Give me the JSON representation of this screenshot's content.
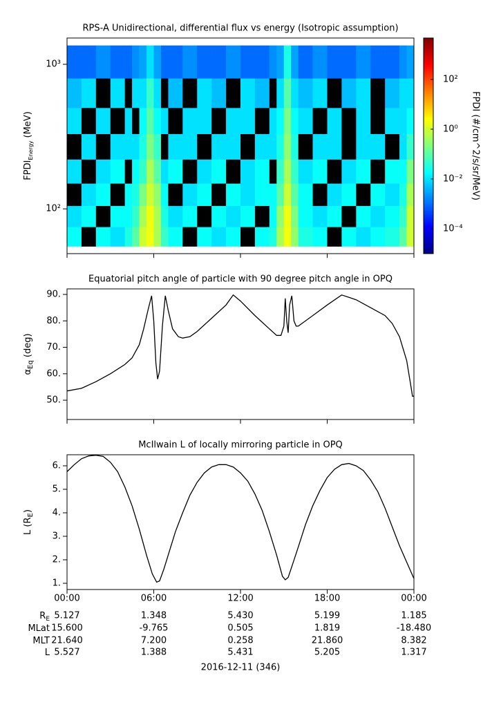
{
  "chart_data": [
    {
      "type": "spectrogram",
      "title": "RPS-A Unidirectional, differential flux vs energy (Isotropic assumption)",
      "ylabel": [
        "FPDI",
        "Energy",
        " (MeV)"
      ],
      "clabel": "FPDI (#/cm^2/s/sr/MeV)",
      "log_y": true,
      "log_c": true,
      "colormap": "jet",
      "zero_color": "#000000",
      "xlim": [
        0,
        24
      ],
      "xticks": [
        0,
        6,
        12,
        18,
        24
      ],
      "ylim": [
        49,
        1520
      ],
      "yticks": [
        {
          "value": 1000,
          "label": "10³"
        },
        {
          "value": 100,
          "label": "10²"
        }
      ],
      "clim": [
        1e-05,
        4600
      ],
      "cticks": [
        {
          "value": 100,
          "label": "10²"
        },
        {
          "value": 1,
          "label": "10⁰"
        },
        {
          "value": 0.01,
          "label": "10⁻²"
        },
        {
          "value": 0.0001,
          "label": "10⁻⁴"
        }
      ],
      "time_bins": [
        0,
        1,
        2,
        3,
        4,
        4.5,
        5,
        5.5,
        6,
        6.5,
        7,
        8,
        9,
        10,
        11,
        12,
        13,
        14,
        14.5,
        15,
        15.5,
        16,
        17,
        18,
        19,
        20,
        21,
        22,
        23,
        23.5,
        24
      ],
      "energy_bins": [
        55,
        75,
        105,
        150,
        220,
        330,
        500,
        800,
        1350
      ],
      "z": [
        [
          0.02,
          0,
          0.02,
          0.01,
          0.03,
          0.1,
          1,
          2,
          0.5,
          0.05,
          0.02,
          0,
          0.02,
          0.01,
          0.02,
          0,
          0.02,
          0.03,
          0.5,
          2,
          0.3,
          0.03,
          0.02,
          0,
          0.02,
          0.01,
          0.02,
          0.03,
          0.1,
          1
        ],
        [
          0.01,
          0.02,
          0,
          0.02,
          0.02,
          0.05,
          0.5,
          2,
          0.5,
          0.03,
          0.01,
          0.02,
          0,
          0.02,
          0.01,
          0.02,
          0,
          0.02,
          0.3,
          2,
          0.2,
          0.02,
          0.01,
          0.02,
          0,
          0.02,
          0.01,
          0.02,
          0.05,
          1
        ],
        [
          0,
          0.01,
          0.02,
          0,
          0.02,
          0.03,
          0.2,
          1,
          0.3,
          0.02,
          0,
          0.01,
          0.02,
          0,
          0.02,
          0.01,
          0.02,
          0.02,
          0.1,
          1,
          0.1,
          0.02,
          0,
          0.01,
          0.02,
          0,
          0.02,
          0.01,
          0.03,
          0.5
        ],
        [
          0.01,
          0,
          0.01,
          0.02,
          0,
          0.02,
          0.05,
          0.5,
          0.1,
          0.01,
          0.02,
          0,
          0.01,
          0.02,
          0,
          0.01,
          0.02,
          0,
          0.05,
          0.5,
          0.05,
          0.01,
          0.02,
          0,
          0.01,
          0.02,
          0,
          0.02,
          0.02,
          0.2
        ],
        [
          0,
          0.01,
          0,
          0.01,
          0.01,
          0.01,
          0.03,
          0.2,
          0.05,
          0,
          0.01,
          0.01,
          0,
          0.01,
          0.01,
          0,
          0.01,
          0.01,
          0.03,
          0.3,
          0.03,
          0,
          0.01,
          0.01,
          0,
          0.01,
          0.01,
          0,
          0.01,
          0.05
        ],
        [
          0.01,
          0,
          0.01,
          0,
          0.01,
          0,
          0.02,
          0.1,
          0.02,
          0.01,
          0,
          0.01,
          0.01,
          0,
          0.01,
          0.01,
          0,
          0.01,
          0.02,
          0.2,
          0.02,
          0.01,
          0,
          0.01,
          0,
          0.01,
          0,
          0.01,
          0.01,
          0.02
        ],
        [
          0.005,
          0.01,
          0,
          0.01,
          0,
          0.01,
          0.01,
          0.05,
          0.01,
          0,
          0.005,
          0,
          0.01,
          0.005,
          0,
          0.01,
          0.005,
          0,
          0.01,
          0.1,
          0.01,
          0.005,
          0.01,
          0,
          0.005,
          0.01,
          0,
          0.005,
          0.01,
          0.01
        ],
        [
          0.001,
          0.001,
          0.002,
          0.001,
          0.001,
          0.002,
          0.003,
          0.01,
          0.003,
          0.001,
          0.001,
          0.002,
          0.001,
          0.001,
          0.002,
          0.001,
          0.001,
          0.002,
          0.003,
          0.03,
          0.003,
          0.001,
          0.002,
          0.001,
          0.001,
          0.002,
          0.001,
          0.001,
          0.002,
          0.003
        ]
      ]
    },
    {
      "type": "line",
      "title": "Equatorial pitch angle of particle with 90 degree pitch angle in OPQ",
      "ylabel": [
        "α",
        "Eq",
        " (deg)"
      ],
      "color": "#000000",
      "xlim": [
        0,
        24
      ],
      "xticks": [
        0,
        6,
        12,
        18,
        24
      ],
      "ylim": [
        42.7,
        92.1
      ],
      "yticks": [
        {
          "value": 50,
          "label": "50."
        },
        {
          "value": 60,
          "label": "60."
        },
        {
          "value": 70,
          "label": "70."
        },
        {
          "value": 80,
          "label": "80."
        },
        {
          "value": 90,
          "label": "90."
        }
      ],
      "x": [
        0,
        1,
        2,
        3,
        4,
        4.5,
        5,
        5.3,
        5.6,
        5.85,
        6.0,
        6.15,
        6.27,
        6.4,
        6.6,
        6.8,
        7.0,
        7.3,
        7.7,
        8,
        8.5,
        9,
        10,
        11,
        11.5,
        12,
        13,
        14,
        14.5,
        14.8,
        15.0,
        15.1,
        15.2,
        15.3,
        15.4,
        15.55,
        15.7,
        15.85,
        16,
        17,
        18,
        19,
        20,
        21,
        22,
        22.5,
        23,
        23.5,
        23.8,
        23.9,
        24
      ],
      "values": [
        53.5,
        54.5,
        57,
        60,
        63.5,
        66,
        71,
        77,
        84,
        89.5,
        80,
        64,
        58,
        61,
        78,
        89.5,
        84,
        77,
        74,
        73.5,
        74,
        76,
        81,
        86,
        89.8,
        87.5,
        82,
        77,
        74.5,
        74.5,
        78,
        88.5,
        80,
        75.5,
        86,
        89.5,
        80,
        78,
        78,
        82,
        86,
        89.8,
        88,
        85,
        82,
        79,
        74,
        65,
        55,
        51.5,
        51.5
      ]
    },
    {
      "type": "line",
      "title": "McIlwain L of locally mirroring particle in OPQ",
      "ylabel": [
        "L (R",
        "E",
        ")"
      ],
      "color": "#000000",
      "xlim": [
        0,
        24
      ],
      "xticks": [
        {
          "value": 0,
          "label": "00:00"
        },
        {
          "value": 6,
          "label": "06:00"
        },
        {
          "value": 12,
          "label": "12:00"
        },
        {
          "value": 18,
          "label": "18:00"
        },
        {
          "value": 24,
          "label": "00:00"
        }
      ],
      "ylim": [
        0.735,
        6.47
      ],
      "yticks": [
        {
          "value": 1,
          "label": "1."
        },
        {
          "value": 2,
          "label": "2."
        },
        {
          "value": 3,
          "label": "3."
        },
        {
          "value": 4,
          "label": "4."
        },
        {
          "value": 5,
          "label": "5."
        },
        {
          "value": 6,
          "label": "6."
        }
      ],
      "x": [
        0,
        0.5,
        1,
        1.5,
        2,
        2.5,
        3,
        3.5,
        4,
        4.5,
        5,
        5.5,
        5.9,
        6.2,
        6.4,
        6.7,
        7,
        7.5,
        8,
        8.5,
        9,
        9.5,
        10,
        10.5,
        11,
        11.5,
        12,
        12.5,
        13,
        13.5,
        14,
        14.5,
        14.9,
        15.1,
        15.3,
        15.6,
        16,
        16.5,
        17,
        17.5,
        18,
        18.5,
        19,
        19.5,
        20,
        20.5,
        21,
        21.5,
        22,
        22.5,
        23,
        23.5,
        24
      ],
      "values": [
        5.75,
        6.05,
        6.3,
        6.42,
        6.45,
        6.4,
        6.15,
        5.75,
        5.1,
        4.3,
        3.3,
        2.2,
        1.4,
        1.05,
        1.1,
        1.6,
        2.2,
        3.2,
        4.0,
        4.75,
        5.3,
        5.7,
        5.95,
        6.05,
        6.05,
        5.95,
        5.7,
        5.35,
        4.8,
        4.1,
        3.2,
        2.2,
        1.3,
        1.15,
        1.25,
        1.8,
        2.55,
        3.5,
        4.3,
        4.95,
        5.5,
        5.85,
        6.05,
        6.1,
        6.0,
        5.8,
        5.4,
        4.9,
        4.2,
        3.4,
        2.6,
        1.9,
        1.2
      ]
    }
  ],
  "ephemeris": {
    "rows": [
      {
        "label": "R",
        "sub": "E",
        "values": [
          "5.127",
          "1.348",
          "5.430",
          "5.199",
          "1.185"
        ]
      },
      {
        "label": "MLat",
        "values": [
          "15.600",
          "-9.765",
          "0.505",
          "1.819",
          "-18.480"
        ]
      },
      {
        "label": "MLT",
        "values": [
          "21.640",
          "7.200",
          "0.258",
          "21.860",
          "8.382"
        ]
      },
      {
        "label": "L",
        "values": [
          "5.527",
          "1.388",
          "5.431",
          "5.205",
          "1.317"
        ]
      }
    ],
    "date": "2016-12-11 (346)"
  }
}
